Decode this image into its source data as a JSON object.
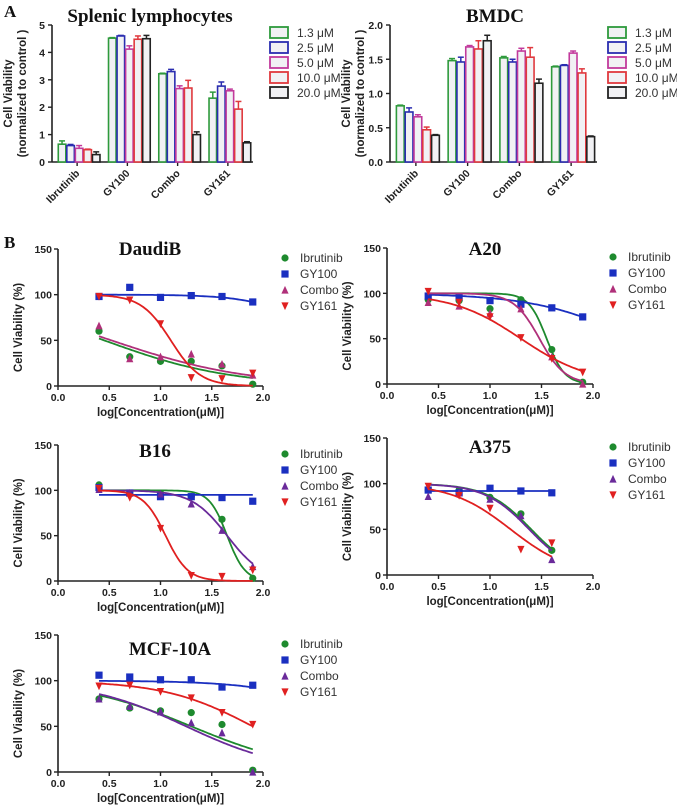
{
  "figure": {
    "panel_labels": [
      "A",
      "B"
    ]
  },
  "chart_data": [
    {
      "type": "bar",
      "title": "Splenic lymphocytes",
      "ylabel": [
        "Cell Viability",
        "(normalized to control )"
      ],
      "categories": [
        "Ibrutinib",
        "GY100",
        "Combo",
        "GY161"
      ],
      "ylim": [
        0,
        5
      ],
      "yticks": [
        0,
        1,
        2,
        3,
        4,
        5
      ],
      "ytick_labels": [
        "0",
        "1",
        "2",
        "3",
        "4",
        "5"
      ],
      "legend": "right",
      "series": [
        {
          "name": "1.3 μM",
          "color": "#2e9a3c",
          "values": [
            0.65,
            4.52,
            3.22,
            2.33
          ],
          "err": [
            0.12,
            0.02,
            0.02,
            0.22
          ]
        },
        {
          "name": "2.5 μM",
          "color": "#2a2db0",
          "values": [
            0.6,
            4.6,
            3.3,
            2.77
          ],
          "err": [
            0.04,
            0.02,
            0.08,
            0.15
          ]
        },
        {
          "name": "5.0 μM",
          "color": "#c23a9c",
          "values": [
            0.5,
            4.12,
            2.68,
            2.6
          ],
          "err": [
            0.1,
            0.12,
            0.1,
            0.06
          ]
        },
        {
          "name": "10.0 μM",
          "color": "#e0393e",
          "values": [
            0.45,
            4.48,
            2.7,
            1.93
          ],
          "err": [
            0.02,
            0.12,
            0.28,
            0.28
          ]
        },
        {
          "name": "20.0 μM",
          "color": "#222222",
          "values": [
            0.27,
            4.5,
            1.0,
            0.7
          ],
          "err": [
            0.1,
            0.12,
            0.1,
            0.04
          ]
        }
      ]
    },
    {
      "type": "bar",
      "title": "BMDC",
      "ylabel": [
        "Cell Viability",
        "(normalized to control )"
      ],
      "categories": [
        "Ibrutinib",
        "GY100",
        "Combo",
        "GY161"
      ],
      "ylim": [
        0,
        2
      ],
      "yticks": [
        0,
        0.5,
        1,
        1.5,
        2
      ],
      "ytick_labels": [
        "0.0",
        "0.5",
        "1.0",
        "1.5",
        "2.0"
      ],
      "legend": "right",
      "series": [
        {
          "name": "1.3 μM",
          "color": "#2e9a3c",
          "values": [
            0.82,
            1.48,
            1.52,
            1.39
          ],
          "err": [
            0.01,
            0.03,
            0.02,
            0.01
          ]
        },
        {
          "name": "2.5 μM",
          "color": "#2a2db0",
          "values": [
            0.73,
            1.46,
            1.46,
            1.41
          ],
          "err": [
            0.06,
            0.07,
            0.04,
            0.01
          ]
        },
        {
          "name": "5.0 μM",
          "color": "#c23a9c",
          "values": [
            0.66,
            1.68,
            1.62,
            1.59
          ],
          "err": [
            0.03,
            0.02,
            0.04,
            0.03
          ]
        },
        {
          "name": "10.0 μM",
          "color": "#e0393e",
          "values": [
            0.47,
            1.65,
            1.53,
            1.3
          ],
          "err": [
            0.04,
            0.12,
            0.14,
            0.06
          ]
        },
        {
          "name": "20.0 μM",
          "color": "#222222",
          "values": [
            0.39,
            1.77,
            1.15,
            0.37
          ],
          "err": [
            0.01,
            0.08,
            0.06,
            0.01
          ]
        }
      ]
    },
    {
      "type": "line",
      "title": "DaudiB",
      "xlabel": "log[Concentration(μM)]",
      "ylabel": "Cell Viability (%)",
      "xlim": [
        0,
        2
      ],
      "xticks": [
        "0.0",
        "0.5",
        "1.0",
        "1.5",
        "2.0"
      ],
      "ylim": [
        0,
        150
      ],
      "yticks": [
        "0",
        "50",
        "100",
        "150"
      ],
      "legend": "right",
      "x": [
        0.4,
        0.7,
        1.0,
        1.3,
        1.6,
        1.9
      ],
      "series": [
        {
          "name": "Ibrutinib",
          "color": "#1e8a2e",
          "marker": "circle",
          "values": [
            60,
            32,
            27,
            27,
            22,
            2
          ],
          "fit": {
            "top": 100,
            "bottom": 0,
            "logIC50": 0.45,
            "hill": 0.7
          }
        },
        {
          "name": "GY100",
          "color": "#1a2fc0",
          "marker": "square",
          "values": [
            98,
            108,
            97,
            99,
            98,
            92
          ],
          "fit": {
            "top": 100,
            "bottom": 0,
            "logIC50": 2.6,
            "hill": 1.5
          }
        },
        {
          "name": "Combo",
          "color": "#b0307a",
          "marker": "triangle-up",
          "values": [
            66,
            30,
            32,
            35,
            24,
            12
          ],
          "fit": {
            "top": 100,
            "bottom": 0,
            "logIC50": 0.52,
            "hill": 0.65
          }
        },
        {
          "name": "GY161",
          "color": "#e02020",
          "marker": "triangle-down",
          "values": [
            98,
            94,
            68,
            9,
            8,
            14
          ],
          "fit": {
            "top": 100,
            "bottom": 0,
            "logIC50": 1.1,
            "hill": 3
          }
        }
      ]
    },
    {
      "type": "line",
      "title": "A20",
      "xlabel": "log[Concentration(μM)]",
      "ylabel": "Cell Viability (%)",
      "xlim": [
        0,
        2
      ],
      "xticks": [
        "0.0",
        "0.5",
        "1.0",
        "1.5",
        "2.0"
      ],
      "ylim": [
        0,
        150
      ],
      "yticks": [
        "0",
        "50",
        "100",
        "150"
      ],
      "legend": "right",
      "x": [
        0.4,
        0.7,
        1.0,
        1.3,
        1.6,
        1.9
      ],
      "series": [
        {
          "name": "Ibrutinib",
          "color": "#1e8a2e",
          "marker": "circle",
          "values": [
            93,
            92,
            83,
            93,
            38,
            2
          ],
          "fit": {
            "top": 100,
            "bottom": 0,
            "logIC50": 1.55,
            "hill": 5
          }
        },
        {
          "name": "GY100",
          "color": "#1a2fc0",
          "marker": "square",
          "values": [
            97,
            96,
            92,
            88,
            84,
            74
          ],
          "fit": {
            "top": 100,
            "bottom": 0,
            "logIC50": 2.4,
            "hill": 0.9
          }
        },
        {
          "name": "Combo",
          "color": "#b0307a",
          "marker": "triangle-up",
          "values": [
            90,
            86,
            78,
            83,
            30,
            0
          ],
          "fit": {
            "top": 100,
            "bottom": 0,
            "logIC50": 1.48,
            "hill": 3.5
          }
        },
        {
          "name": "GY161",
          "color": "#e02020",
          "marker": "triangle-down",
          "values": [
            102,
            90,
            74,
            51,
            28,
            13
          ],
          "fit": {
            "top": 100,
            "bottom": 0,
            "logIC50": 1.3,
            "hill": 1.3
          }
        }
      ]
    },
    {
      "type": "line",
      "title": "B16",
      "xlabel": "log[Concentration(μM)]",
      "ylabel": "Cell Viability (%)",
      "xlim": [
        0,
        2
      ],
      "xticks": [
        "0.0",
        "0.5",
        "1.0",
        "1.5",
        "2.0"
      ],
      "ylim": [
        0,
        150
      ],
      "yticks": [
        "0",
        "50",
        "100",
        "150"
      ],
      "legend": "right",
      "x": [
        0.4,
        0.7,
        1.0,
        1.3,
        1.6,
        1.9
      ],
      "series": [
        {
          "name": "Ibrutinib",
          "color": "#1e8a2e",
          "marker": "circle",
          "values": [
            106,
            97,
            97,
            93,
            68,
            3
          ],
          "fit": {
            "top": 100,
            "bottom": 0,
            "logIC50": 1.65,
            "hill": 5
          }
        },
        {
          "name": "GY100",
          "color": "#1a2fc0",
          "marker": "square",
          "values": [
            103,
            97,
            93,
            93,
            92,
            88
          ],
          "fit": {
            "top": 95,
            "bottom": 95,
            "logIC50": 10,
            "hill": 1
          }
        },
        {
          "name": "Combo",
          "color": "#6a2a9a",
          "marker": "triangle-up",
          "values": [
            101,
            97,
            96,
            85,
            56,
            16
          ],
          "fit": {
            "top": 100,
            "bottom": 0,
            "logIC50": 1.65,
            "hill": 2.5
          }
        },
        {
          "name": "GY161",
          "color": "#e02020",
          "marker": "triangle-down",
          "values": [
            102,
            92,
            58,
            6,
            5,
            12
          ],
          "fit": {
            "top": 100,
            "bottom": 0,
            "logIC50": 1.05,
            "hill": 4
          }
        }
      ]
    },
    {
      "type": "line",
      "title": "A375",
      "xlabel": "log[Concentration(μM)]",
      "ylabel": "Cell Viability (%)",
      "xlim": [
        0,
        2
      ],
      "xticks": [
        "0.0",
        "0.5",
        "1.0",
        "1.5",
        "2.0"
      ],
      "ylim": [
        0,
        150
      ],
      "yticks": [
        "0",
        "50",
        "100",
        "150"
      ],
      "legend": "right",
      "x": [
        0.4,
        0.7,
        1.0,
        1.3,
        1.6
      ],
      "series": [
        {
          "name": "Ibrutinib",
          "color": "#1e8a2e",
          "marker": "circle",
          "values": [
            93,
            93,
            85,
            67,
            27
          ],
          "fit": {
            "top": 100,
            "bottom": 0,
            "logIC50": 1.4,
            "hill": 2
          }
        },
        {
          "name": "GY100",
          "color": "#1a2fc0",
          "marker": "square",
          "values": [
            93,
            90,
            95,
            92,
            90
          ],
          "fit": {
            "top": 92,
            "bottom": 92,
            "logIC50": 10,
            "hill": 1
          }
        },
        {
          "name": "Combo",
          "color": "#6a2a9a",
          "marker": "triangle-up",
          "values": [
            86,
            90,
            83,
            65,
            17
          ],
          "fit": {
            "top": 100,
            "bottom": 0,
            "logIC50": 1.38,
            "hill": 2
          }
        },
        {
          "name": "GY161",
          "color": "#e02020",
          "marker": "triangle-down",
          "values": [
            97,
            87,
            73,
            28,
            35
          ],
          "fit": {
            "top": 100,
            "bottom": 0,
            "logIC50": 1.2,
            "hill": 1.5
          }
        }
      ]
    },
    {
      "type": "line",
      "title": "MCF-10A",
      "xlabel": "log[Concentration(μM)]",
      "ylabel": "Cell Viability (%)",
      "xlim": [
        0,
        2
      ],
      "xticks": [
        "0.0",
        "0.5",
        "1.0",
        "1.5",
        "2.0"
      ],
      "ylim": [
        0,
        150
      ],
      "yticks": [
        "0",
        "50",
        "100",
        "150"
      ],
      "legend": "right",
      "x": [
        0.4,
        0.7,
        1.0,
        1.3,
        1.6,
        1.9
      ],
      "series": [
        {
          "name": "Ibrutinib",
          "color": "#1e8a2e",
          "marker": "circle",
          "values": [
            80,
            70,
            67,
            65,
            52,
            2
          ],
          "fit": {
            "top": 100,
            "bottom": 0,
            "logIC50": 1.3,
            "hill": 0.8
          }
        },
        {
          "name": "GY100",
          "color": "#1a2fc0",
          "marker": "square",
          "values": [
            106,
            104,
            101,
            101,
            93,
            95
          ],
          "fit": {
            "top": 100,
            "bottom": 0,
            "logIC50": 3.0,
            "hill": 1
          }
        },
        {
          "name": "Combo",
          "color": "#6a2a9a",
          "marker": "triangle-up",
          "values": [
            80,
            72,
            66,
            54,
            43,
            0
          ],
          "fit": {
            "top": 100,
            "bottom": 0,
            "logIC50": 1.25,
            "hill": 0.9
          }
        },
        {
          "name": "GY161",
          "color": "#e02020",
          "marker": "triangle-down",
          "values": [
            94,
            95,
            88,
            81,
            65,
            52
          ],
          "fit": {
            "top": 100,
            "bottom": 0,
            "logIC50": 1.9,
            "hill": 1
          }
        }
      ]
    }
  ]
}
